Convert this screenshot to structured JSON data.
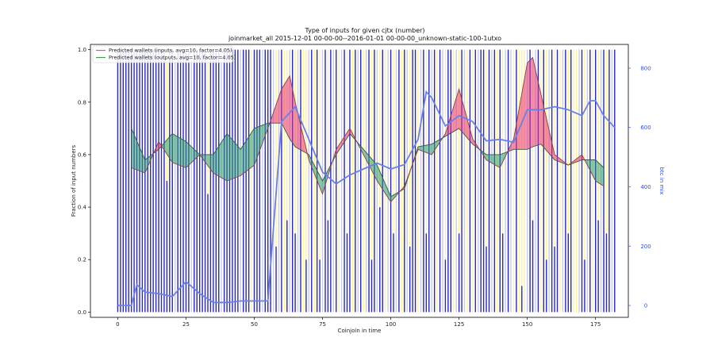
{
  "chart_data": {
    "type": "bar",
    "title": "Type of inputs for given cjtx (number)",
    "subtitle": "joinmarket_all 2015-12-01 00-00-00--2016-01-01 00-00-00_unknown-static-100-1utxo",
    "xlabel": "Coinjoin in time",
    "ylabel": "Fraction of input numbers",
    "y2label": "btc in mix",
    "xlim": [
      -10,
      187
    ],
    "ylim": [
      -0.02,
      1.02
    ],
    "y2lim": [
      -40,
      880
    ],
    "xticks": [
      0,
      25,
      50,
      75,
      100,
      125,
      150,
      175
    ],
    "yticks": [
      0.0,
      0.2,
      0.4,
      0.6,
      0.8,
      1.0
    ],
    "y2ticks": [
      0,
      200,
      400,
      600,
      800
    ],
    "grid": false,
    "legend_position": "top-left",
    "colors": {
      "blue_bar": "#2828c0",
      "yellow_bar": "#fff29a",
      "lavender_bar": "#c8caf0",
      "inputs_line": "#e06060",
      "inputs_fill": "#e8336b",
      "outputs_line": "#40a040",
      "outputs_fill": "#2e9a6a",
      "btc_line": "#6a80e8",
      "axis_right": "#3050e0"
    },
    "series": [
      {
        "name": "Predicted wallets (inputs, avg=10, factor=4.05)",
        "x": [
          5,
          10,
          15,
          20,
          25,
          30,
          35,
          40,
          45,
          50,
          55,
          60,
          63,
          65,
          70,
          75,
          80,
          85,
          90,
          95,
          100,
          105,
          110,
          115,
          120,
          125,
          130,
          135,
          140,
          145,
          150,
          152,
          155,
          160,
          165,
          170,
          175,
          178
        ],
        "values": [
          0.55,
          0.53,
          0.65,
          0.57,
          0.55,
          0.6,
          0.53,
          0.5,
          0.52,
          0.56,
          0.7,
          0.85,
          0.9,
          0.8,
          0.58,
          0.45,
          0.62,
          0.7,
          0.6,
          0.5,
          0.42,
          0.48,
          0.62,
          0.6,
          0.68,
          0.85,
          0.66,
          0.58,
          0.55,
          0.66,
          0.95,
          0.97,
          0.83,
          0.6,
          0.56,
          0.6,
          0.5,
          0.48
        ]
      },
      {
        "name": "Predicted wallets (outputs, avg=10, factor=4.05)",
        "x": [
          5,
          10,
          15,
          20,
          25,
          30,
          35,
          40,
          45,
          50,
          55,
          60,
          63,
          65,
          70,
          75,
          80,
          85,
          90,
          95,
          100,
          105,
          110,
          115,
          120,
          125,
          130,
          135,
          140,
          145,
          150,
          152,
          155,
          160,
          165,
          170,
          175,
          178
        ],
        "values": [
          0.7,
          0.58,
          0.62,
          0.68,
          0.65,
          0.6,
          0.6,
          0.68,
          0.62,
          0.7,
          0.72,
          0.72,
          0.66,
          0.63,
          0.6,
          0.5,
          0.6,
          0.68,
          0.62,
          0.56,
          0.44,
          0.47,
          0.63,
          0.64,
          0.67,
          0.7,
          0.64,
          0.6,
          0.6,
          0.62,
          0.62,
          0.63,
          0.64,
          0.58,
          0.56,
          0.58,
          0.58,
          0.55
        ]
      },
      {
        "name": "btc in mix",
        "axis": "right",
        "x": [
          0,
          5,
          7,
          10,
          15,
          20,
          25,
          30,
          35,
          40,
          45,
          50,
          55,
          60,
          65,
          70,
          75,
          80,
          85,
          90,
          95,
          100,
          105,
          110,
          113,
          115,
          120,
          125,
          130,
          135,
          140,
          145,
          150,
          155,
          160,
          165,
          170,
          173,
          175,
          178,
          180,
          182
        ],
        "values": [
          0,
          0,
          70,
          45,
          40,
          30,
          80,
          40,
          10,
          10,
          15,
          15,
          15,
          620,
          670,
          560,
          450,
          410,
          440,
          460,
          480,
          460,
          475,
          560,
          720,
          700,
          605,
          640,
          620,
          555,
          560,
          550,
          660,
          660,
          670,
          660,
          640,
          690,
          690,
          640,
          620,
          600
        ]
      }
    ],
    "bars": {
      "count": 183,
      "top": 1.0,
      "yellow_indices": [
        18,
        33,
        49,
        58,
        61,
        62,
        65,
        68,
        69,
        72,
        74,
        77,
        81,
        84,
        86,
        90,
        93,
        96,
        98,
        101,
        104,
        107,
        110,
        113,
        117,
        120,
        123,
        125,
        128,
        130,
        135,
        139,
        141,
        145,
        147,
        148,
        149,
        152,
        155,
        157,
        160,
        162,
        165,
        167,
        168,
        171,
        174,
        176,
        179
      ],
      "lavender_indices": [
        21,
        27,
        38,
        45,
        53,
        57,
        59,
        63,
        66,
        70,
        75,
        79,
        82,
        88,
        91,
        95,
        99,
        102,
        106,
        111,
        115,
        119,
        124,
        127,
        132,
        137,
        142,
        144,
        150,
        153,
        158,
        163,
        169,
        172,
        177,
        181
      ],
      "blue_bottoms": {
        "18": 0.5,
        "33": 0.45,
        "58": 0.25,
        "62": 0.35,
        "65": 0.3,
        "69": 0.2,
        "74": 0.2,
        "77": 0.35,
        "84": 0.3,
        "93": 0.2,
        "96": 0.4,
        "101": 0.3,
        "107": 0.25,
        "113": 0.3,
        "120": 0.2,
        "125": 0.3,
        "135": 0.25,
        "141": 0.3,
        "148": 0.1,
        "152": 0.35,
        "157": 0.2,
        "160": 0.25,
        "165": 0.3,
        "171": 0.2,
        "176": 0.35,
        "179": 0.3
      }
    }
  }
}
